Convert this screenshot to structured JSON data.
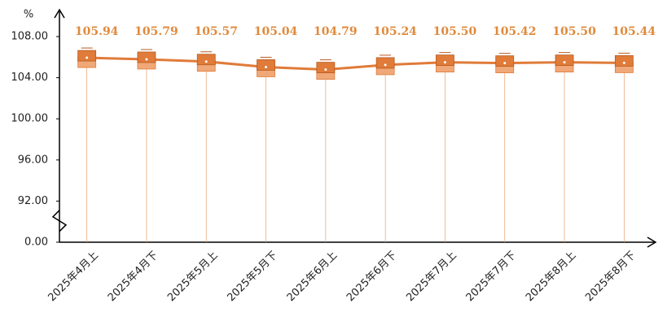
{
  "chart_data": {
    "type": "line",
    "y_label": "%",
    "categories": [
      "2025年4月上",
      "2025年4月下",
      "2025年5月上",
      "2025年5月下",
      "2025年6月上",
      "2025年6月下",
      "2025年7月上",
      "2025年7月下",
      "2025年8月上",
      "2025年8月下"
    ],
    "series": [
      {
        "color": "#e07b39",
        "values": [
          105.94,
          105.79,
          105.57,
          105.04,
          104.79,
          105.24,
          105.5,
          105.42,
          105.5,
          105.44
        ],
        "value_labels": [
          "105.94",
          "105.79",
          "105.57",
          "105.04",
          "104.79",
          "105.24",
          "105.50",
          "105.42",
          "105.50",
          "105.44"
        ]
      }
    ],
    "ylim": [
      0,
      108
    ],
    "yticks": [
      {
        "value": 0,
        "label": "0.00"
      },
      {
        "value": 92,
        "label": "92.00"
      },
      {
        "value": 96,
        "label": "96.00"
      },
      {
        "value": 100,
        "label": "100.00"
      },
      {
        "value": 104,
        "label": "104.00"
      },
      {
        "value": 108,
        "label": "108.00"
      }
    ],
    "axis_break": true
  }
}
